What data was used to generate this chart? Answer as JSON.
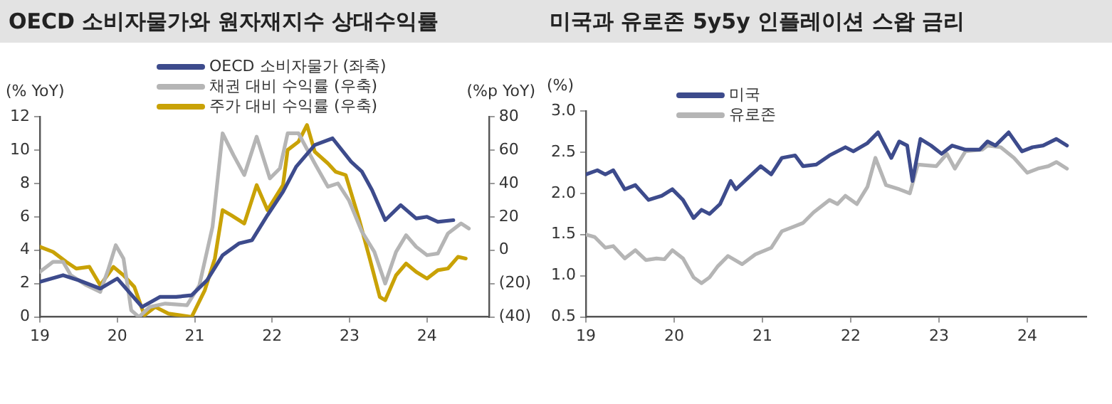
{
  "chart_data": [
    {
      "type": "line",
      "title": "OECD 소비자물가와 원자재지수 상대수익률",
      "ylabel": "(% YoY)",
      "y2label": "(%p YoY)",
      "xlim": [
        19,
        24.8
      ],
      "xticks": [
        19,
        20,
        21,
        22,
        23,
        24
      ],
      "ylim": [
        0,
        12
      ],
      "yticks": [
        0,
        2,
        4,
        6,
        8,
        10,
        12
      ],
      "y2lim": [
        -40,
        80
      ],
      "y2ticks": [
        {
          "value": -40,
          "label": "(40)"
        },
        {
          "value": -20,
          "label": "(20)"
        },
        0,
        20,
        40,
        60,
        80
      ],
      "grid": false,
      "legend": "top",
      "marker": "none",
      "line_style": "solid",
      "series": [
        {
          "name": "OECD 소비자물가 (좌축)",
          "color": "#3d4b8c",
          "x": [
            19.0,
            19.3,
            19.5,
            19.78,
            20.0,
            20.32,
            20.55,
            20.76,
            20.96,
            21.16,
            21.36,
            21.57,
            21.74,
            21.94,
            22.14,
            22.31,
            22.55,
            22.78,
            23.02,
            23.16,
            23.29,
            23.46,
            23.66,
            23.86,
            24.0,
            24.14,
            24.34
          ],
          "values": [
            2.1,
            2.5,
            2.2,
            1.7,
            2.3,
            0.6,
            1.2,
            1.2,
            1.3,
            2.2,
            3.7,
            4.4,
            4.6,
            6.1,
            7.5,
            9.0,
            10.3,
            10.7,
            9.3,
            8.7,
            7.6,
            5.8,
            6.7,
            5.9,
            6.0,
            5.7,
            5.8
          ]
        },
        {
          "name": "채권 대비 수익률 (우축)",
          "color": "#b5b5b5",
          "axis": "y2",
          "x": [
            19.0,
            19.17,
            19.3,
            19.4,
            19.6,
            19.78,
            19.88,
            19.98,
            20.08,
            20.18,
            20.28,
            20.42,
            20.62,
            20.9,
            21.06,
            21.23,
            21.36,
            21.5,
            21.64,
            21.8,
            21.97,
            22.1,
            22.2,
            22.34,
            22.55,
            22.72,
            22.85,
            22.99,
            23.16,
            23.32,
            23.46,
            23.6,
            23.73,
            23.86,
            24.0,
            24.14,
            24.27,
            24.44,
            24.54
          ],
          "values": [
            -13,
            -7,
            -7,
            -15,
            -21,
            -25,
            -12,
            3,
            -5,
            -36,
            -40,
            -34,
            -32,
            -33,
            -21,
            14,
            70,
            57,
            45,
            68,
            43,
            49,
            70,
            70,
            52,
            38,
            40,
            30,
            11,
            -1,
            -20,
            -1,
            9,
            2,
            -3,
            -2,
            10,
            16,
            13
          ]
        },
        {
          "name": "주가 대비 수익률 (우축)",
          "color": "#c9a206",
          "axis": "y2",
          "x": [
            19.0,
            19.17,
            19.34,
            19.47,
            19.64,
            19.78,
            19.95,
            20.08,
            20.22,
            20.35,
            20.49,
            20.66,
            20.96,
            21.13,
            21.26,
            21.36,
            21.47,
            21.64,
            21.8,
            21.94,
            22.14,
            22.2,
            22.34,
            22.45,
            22.55,
            22.72,
            22.82,
            22.95,
            23.12,
            23.26,
            23.39,
            23.46,
            23.6,
            23.73,
            23.86,
            24.0,
            24.14,
            24.27,
            24.4,
            24.5
          ],
          "values": [
            2,
            -1,
            -7,
            -11,
            -10,
            -21,
            -10,
            -15,
            -22,
            -39,
            -34,
            -38,
            -40,
            -24,
            -5,
            24,
            21,
            16,
            39,
            24,
            39,
            60,
            65,
            75,
            59,
            52,
            47,
            45,
            19,
            -5,
            -28,
            -30,
            -15,
            -8,
            -13,
            -17,
            -12,
            -11,
            -4,
            -5
          ]
        }
      ]
    },
    {
      "type": "line",
      "title": "미국과 유로존 5y5y 인플레이션 스왑 금리",
      "ylabel": "(%)",
      "xlim": [
        19,
        24.67
      ],
      "xticks": [
        19,
        20,
        21,
        22,
        23,
        24
      ],
      "ylim": [
        0.5,
        3.0
      ],
      "yticks": [
        {
          "value": 0.5,
          "label": "0.5"
        },
        {
          "value": 1,
          "label": "1.0"
        },
        {
          "value": 1.5,
          "label": "1.5"
        },
        {
          "value": 2,
          "label": "2.0"
        },
        {
          "value": 2.5,
          "label": "2.5"
        },
        {
          "value": 3,
          "label": "3.0"
        }
      ],
      "grid": false,
      "legend": "top left",
      "marker": "none",
      "line_style": "solid",
      "series": [
        {
          "name": "미국",
          "color": "#3d4b8c",
          "x": [
            19.0,
            19.13,
            19.22,
            19.31,
            19.44,
            19.56,
            19.71,
            19.86,
            19.98,
            20.1,
            20.22,
            20.31,
            20.4,
            20.52,
            20.64,
            20.7,
            20.83,
            20.98,
            21.1,
            21.22,
            21.37,
            21.46,
            21.61,
            21.76,
            21.94,
            22.03,
            22.19,
            22.31,
            22.46,
            22.55,
            22.64,
            22.7,
            22.79,
            22.91,
            23.03,
            23.15,
            23.3,
            23.46,
            23.55,
            23.64,
            23.79,
            23.94,
            24.06,
            24.18,
            24.33,
            24.45
          ],
          "values": [
            2.23,
            2.28,
            2.23,
            2.28,
            2.05,
            2.1,
            1.92,
            1.97,
            2.05,
            1.92,
            1.7,
            1.8,
            1.75,
            1.87,
            2.15,
            2.05,
            2.18,
            2.33,
            2.23,
            2.43,
            2.46,
            2.33,
            2.35,
            2.46,
            2.56,
            2.51,
            2.61,
            2.74,
            2.43,
            2.63,
            2.58,
            2.15,
            2.66,
            2.58,
            2.48,
            2.58,
            2.53,
            2.53,
            2.63,
            2.58,
            2.74,
            2.51,
            2.56,
            2.58,
            2.66,
            2.58
          ]
        },
        {
          "name": "유로존",
          "color": "#b5b5b5",
          "x": [
            19.0,
            19.1,
            19.22,
            19.31,
            19.44,
            19.56,
            19.68,
            19.8,
            19.89,
            19.98,
            20.1,
            20.22,
            20.31,
            20.4,
            20.49,
            20.61,
            20.77,
            20.92,
            21.1,
            21.22,
            21.34,
            21.46,
            21.58,
            21.76,
            21.85,
            21.94,
            22.07,
            22.19,
            22.28,
            22.4,
            22.55,
            22.67,
            22.76,
            22.97,
            23.09,
            23.18,
            23.3,
            23.49,
            23.55,
            23.7,
            23.85,
            24.0,
            24.12,
            24.24,
            24.33,
            24.45
          ],
          "values": [
            1.5,
            1.47,
            1.34,
            1.36,
            1.21,
            1.31,
            1.19,
            1.21,
            1.2,
            1.31,
            1.21,
            0.98,
            0.91,
            0.98,
            1.11,
            1.24,
            1.14,
            1.26,
            1.34,
            1.54,
            1.59,
            1.64,
            1.77,
            1.92,
            1.87,
            1.97,
            1.87,
            2.08,
            2.43,
            2.1,
            2.05,
            2.0,
            2.35,
            2.33,
            2.48,
            2.3,
            2.51,
            2.53,
            2.58,
            2.56,
            2.43,
            2.25,
            2.3,
            2.33,
            2.38,
            2.3
          ]
        }
      ]
    }
  ]
}
